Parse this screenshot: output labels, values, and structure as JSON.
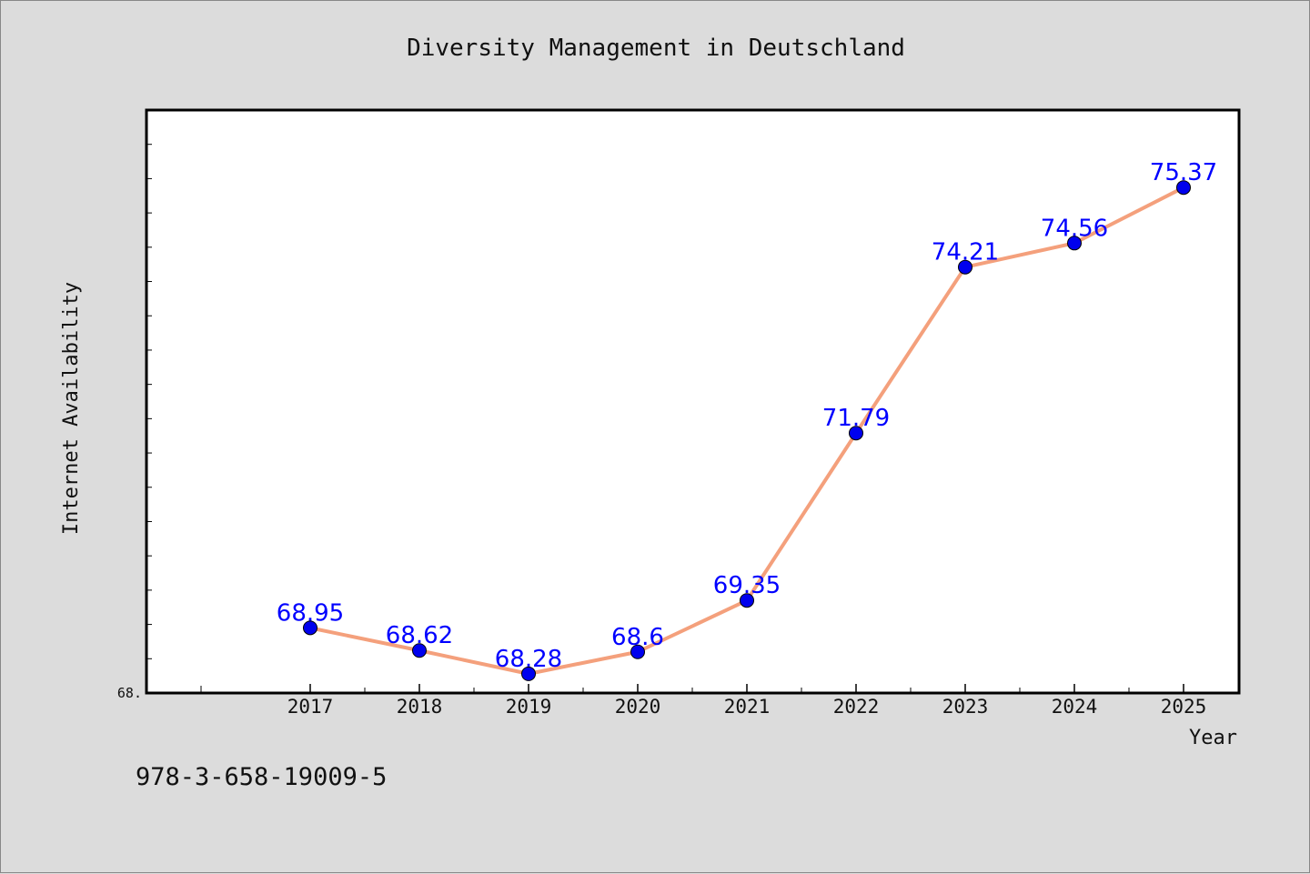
{
  "chart_data": {
    "type": "line",
    "title": "Diversity Management in Deutschland",
    "xlabel": "Year",
    "ylabel": "Internet Availability",
    "x": [
      "2017",
      "2018",
      "2019",
      "2020",
      "2021",
      "2022",
      "2023",
      "2024",
      "2025"
    ],
    "series": [
      {
        "values": [
          68.95,
          68.62,
          68.28,
          68.6,
          69.35,
          71.79,
          74.21,
          74.56,
          75.37
        ],
        "labels": [
          "68.95",
          "68.62",
          "68.28",
          "68.6",
          "69.35",
          "71.79",
          "74.21",
          "74.56",
          "75.37"
        ],
        "line_color": "#f4a07c",
        "marker_color": "#0000ee"
      }
    ],
    "ylim": [
      68,
      76.5
    ],
    "y_tick_label": "68.",
    "grid": false,
    "legend": "none",
    "label_color": "#0000ff"
  },
  "footer": {
    "isbn": "978-3-658-19009-5"
  }
}
